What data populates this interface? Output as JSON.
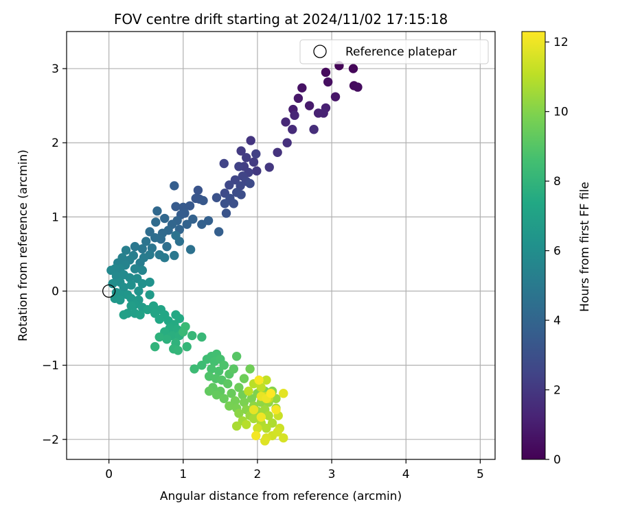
{
  "chart_data": {
    "type": "scatter",
    "title": "FOV centre drift starting at 2024/11/02 17:15:18",
    "xlabel": "Angular distance from reference (arcmin)",
    "ylabel": "Rotation from reference (arcmin)",
    "xlim": [
      -0.57,
      5.2
    ],
    "ylim": [
      -2.27,
      3.5
    ],
    "xticks": [
      0,
      1,
      2,
      3,
      4,
      5
    ],
    "yticks": [
      -2,
      -1,
      0,
      1,
      2,
      3
    ],
    "grid": true,
    "legend": {
      "position": "top-right",
      "entries": [
        "Reference platepar"
      ]
    },
    "reference_point": {
      "x": 0,
      "y": 0,
      "label": "Reference platepar"
    },
    "colorbar": {
      "label": "Hours from first FF file",
      "colormap": "viridis",
      "range": [
        0,
        12.3
      ],
      "ticks": [
        0,
        2,
        4,
        6,
        8,
        10,
        12
      ]
    },
    "points": [
      [
        3.1,
        3.04,
        0.1
      ],
      [
        3.29,
        3.0,
        0.2
      ],
      [
        2.92,
        2.95,
        0.3
      ],
      [
        3.3,
        2.77,
        0.35
      ],
      [
        3.35,
        2.75,
        0.4
      ],
      [
        2.95,
        2.82,
        0.5
      ],
      [
        2.6,
        2.74,
        0.6
      ],
      [
        3.05,
        2.62,
        0.7
      ],
      [
        2.55,
        2.6,
        0.8
      ],
      [
        2.7,
        2.5,
        0.9
      ],
      [
        2.48,
        2.45,
        1.0
      ],
      [
        2.92,
        2.47,
        1.1
      ],
      [
        2.82,
        2.4,
        1.15
      ],
      [
        2.89,
        2.4,
        1.2
      ],
      [
        2.5,
        2.37,
        1.3
      ],
      [
        2.38,
        2.28,
        1.4
      ],
      [
        2.47,
        2.18,
        1.5
      ],
      [
        2.76,
        2.18,
        1.6
      ],
      [
        2.4,
        2.0,
        1.7
      ],
      [
        2.27,
        1.87,
        1.8
      ],
      [
        1.91,
        2.03,
        1.9
      ],
      [
        2.16,
        1.67,
        2.0
      ],
      [
        1.99,
        1.62,
        2.05
      ],
      [
        1.78,
        1.89,
        2.1
      ],
      [
        1.95,
        1.74,
        2.15
      ],
      [
        1.85,
        1.8,
        2.2
      ],
      [
        1.82,
        1.68,
        2.25
      ],
      [
        1.88,
        1.6,
        2.3
      ],
      [
        1.98,
        1.85,
        2.35
      ],
      [
        1.75,
        1.68,
        2.4
      ],
      [
        1.55,
        1.72,
        2.45
      ],
      [
        1.8,
        1.55,
        2.5
      ],
      [
        1.7,
        1.5,
        2.55
      ],
      [
        1.85,
        1.48,
        2.6
      ],
      [
        1.62,
        1.43,
        2.65
      ],
      [
        1.77,
        1.42,
        2.7
      ],
      [
        1.9,
        1.45,
        2.75
      ],
      [
        1.56,
        1.32,
        2.8
      ],
      [
        1.72,
        1.33,
        2.85
      ],
      [
        1.78,
        1.3,
        2.9
      ],
      [
        1.63,
        1.25,
        2.95
      ],
      [
        1.68,
        1.18,
        3.0
      ],
      [
        1.56,
        1.18,
        3.05
      ],
      [
        1.45,
        1.26,
        3.1
      ],
      [
        1.58,
        1.05,
        3.15
      ],
      [
        1.2,
        1.36,
        3.2
      ],
      [
        1.22,
        1.24,
        3.25
      ],
      [
        1.17,
        1.25,
        3.3
      ],
      [
        1.27,
        1.22,
        3.35
      ],
      [
        1.09,
        1.15,
        3.4
      ],
      [
        1.0,
        1.13,
        3.45
      ],
      [
        0.9,
        1.14,
        3.5
      ],
      [
        1.02,
        1.05,
        3.55
      ],
      [
        0.97,
        1.03,
        3.6
      ],
      [
        0.88,
        1.42,
        3.65
      ],
      [
        1.48,
        0.8,
        3.7
      ],
      [
        1.34,
        0.95,
        3.75
      ],
      [
        1.25,
        0.9,
        3.8
      ],
      [
        1.13,
        0.97,
        3.85
      ],
      [
        1.05,
        0.9,
        3.9
      ],
      [
        0.92,
        0.95,
        3.95
      ],
      [
        0.95,
        0.83,
        4.0
      ],
      [
        0.85,
        0.9,
        4.05
      ],
      [
        0.75,
        0.98,
        4.1
      ],
      [
        0.65,
        1.08,
        4.15
      ],
      [
        0.8,
        0.82,
        4.2
      ],
      [
        0.72,
        0.78,
        4.25
      ],
      [
        0.63,
        0.93,
        4.3
      ],
      [
        0.7,
        0.7,
        4.35
      ],
      [
        0.55,
        0.8,
        4.4
      ],
      [
        0.62,
        0.72,
        4.45
      ],
      [
        0.78,
        0.6,
        4.5
      ],
      [
        0.95,
        0.67,
        4.55
      ],
      [
        1.1,
        0.56,
        4.6
      ],
      [
        0.9,
        0.75,
        4.65
      ],
      [
        0.5,
        0.67,
        4.7
      ],
      [
        0.58,
        0.58,
        4.75
      ],
      [
        0.45,
        0.57,
        4.8
      ],
      [
        0.35,
        0.6,
        4.85
      ],
      [
        0.88,
        0.48,
        4.9
      ],
      [
        0.68,
        0.49,
        4.95
      ],
      [
        0.75,
        0.45,
        5.0
      ],
      [
        0.55,
        0.49,
        5.05
      ],
      [
        0.47,
        0.45,
        5.1
      ],
      [
        0.42,
        0.38,
        5.15
      ],
      [
        0.33,
        0.48,
        5.2
      ],
      [
        0.23,
        0.55,
        5.25
      ],
      [
        0.28,
        0.42,
        5.3
      ],
      [
        0.18,
        0.45,
        5.35
      ],
      [
        0.12,
        0.38,
        5.4
      ],
      [
        0.22,
        0.35,
        5.45
      ],
      [
        0.35,
        0.3,
        5.5
      ],
      [
        0.45,
        0.28,
        5.55
      ],
      [
        0.15,
        0.3,
        5.6
      ],
      [
        0.08,
        0.3,
        5.65
      ],
      [
        0.03,
        0.28,
        5.7
      ],
      [
        0.1,
        0.2,
        5.75
      ],
      [
        0.2,
        0.22,
        5.8
      ],
      [
        0.28,
        0.18,
        5.85
      ],
      [
        0.38,
        0.17,
        5.9
      ],
      [
        0.15,
        0.12,
        5.95
      ],
      [
        0.05,
        0.1,
        6.0
      ],
      [
        0.2,
        0.05,
        6.05
      ],
      [
        0.3,
        0.08,
        6.1
      ],
      [
        0.45,
        0.1,
        6.15
      ],
      [
        0.55,
        0.12,
        6.2
      ],
      [
        0.4,
        0.0,
        6.25
      ],
      [
        0.1,
        -0.02,
        6.3
      ],
      [
        0.18,
        -0.05,
        6.35
      ],
      [
        0.25,
        -0.05,
        6.4
      ],
      [
        0.08,
        -0.1,
        6.45
      ],
      [
        0.15,
        -0.12,
        6.5
      ],
      [
        0.3,
        -0.1,
        6.55
      ],
      [
        0.4,
        -0.12,
        6.6
      ],
      [
        0.55,
        -0.05,
        6.65
      ],
      [
        0.35,
        -0.18,
        6.7
      ],
      [
        0.45,
        -0.22,
        6.75
      ],
      [
        0.3,
        -0.2,
        6.8
      ],
      [
        0.25,
        -0.3,
        6.85
      ],
      [
        0.35,
        -0.3,
        6.9
      ],
      [
        0.2,
        -0.32,
        6.95
      ],
      [
        0.42,
        -0.32,
        7.0
      ],
      [
        0.52,
        -0.25,
        7.05
      ],
      [
        0.6,
        -0.2,
        7.1
      ],
      [
        0.7,
        -0.25,
        7.15
      ],
      [
        0.62,
        -0.3,
        7.2
      ],
      [
        0.75,
        -0.32,
        7.25
      ],
      [
        0.68,
        -0.38,
        7.3
      ],
      [
        0.8,
        -0.4,
        7.35
      ],
      [
        0.9,
        -0.32,
        7.4
      ],
      [
        0.95,
        -0.37,
        7.45
      ],
      [
        0.88,
        -0.45,
        7.5
      ],
      [
        0.82,
        -0.5,
        7.55
      ],
      [
        0.92,
        -0.52,
        7.6
      ],
      [
        0.75,
        -0.55,
        7.65
      ],
      [
        0.85,
        -0.6,
        7.7
      ],
      [
        0.95,
        -0.6,
        7.75
      ],
      [
        0.78,
        -0.65,
        7.8
      ],
      [
        0.68,
        -0.62,
        7.85
      ],
      [
        0.9,
        -0.7,
        7.9
      ],
      [
        0.62,
        -0.75,
        7.95
      ],
      [
        0.87,
        -0.78,
        8.0
      ],
      [
        0.93,
        -0.8,
        8.05
      ],
      [
        1.05,
        -0.75,
        8.1
      ],
      [
        1.12,
        -0.6,
        8.15
      ],
      [
        1.25,
        -0.62,
        8.2
      ],
      [
        1.0,
        -0.55,
        8.25
      ],
      [
        1.03,
        -0.48,
        8.3
      ],
      [
        1.15,
        -1.05,
        8.35
      ],
      [
        1.25,
        -1.0,
        8.4
      ],
      [
        1.32,
        -0.92,
        8.45
      ],
      [
        1.38,
        -0.88,
        8.5
      ],
      [
        1.45,
        -0.85,
        8.55
      ],
      [
        1.42,
        -0.95,
        8.6
      ],
      [
        1.5,
        -0.92,
        8.65
      ],
      [
        1.38,
        -1.05,
        8.7
      ],
      [
        1.48,
        -1.08,
        8.75
      ],
      [
        1.55,
        -1.0,
        8.8
      ],
      [
        1.35,
        -1.15,
        8.85
      ],
      [
        1.44,
        -1.18,
        8.9
      ],
      [
        1.52,
        -1.2,
        8.95
      ],
      [
        1.62,
        -1.12,
        9.0
      ],
      [
        1.72,
        -0.88,
        9.05
      ],
      [
        1.68,
        -1.05,
        9.1
      ],
      [
        1.6,
        -1.25,
        9.15
      ],
      [
        1.4,
        -1.3,
        9.2
      ],
      [
        1.5,
        -1.35,
        9.25
      ],
      [
        1.35,
        -1.35,
        9.3
      ],
      [
        1.45,
        -1.4,
        9.35
      ],
      [
        1.55,
        -1.45,
        9.4
      ],
      [
        1.65,
        -1.38,
        9.45
      ],
      [
        1.75,
        -1.3,
        9.5
      ],
      [
        1.82,
        -1.18,
        9.55
      ],
      [
        1.9,
        -1.05,
        9.6
      ],
      [
        1.8,
        -1.4,
        9.65
      ],
      [
        1.7,
        -1.48,
        9.7
      ],
      [
        1.62,
        -1.55,
        9.75
      ],
      [
        1.72,
        -1.58,
        9.8
      ],
      [
        1.82,
        -1.5,
        9.85
      ],
      [
        1.92,
        -1.45,
        9.9
      ],
      [
        2.0,
        -1.38,
        9.95
      ],
      [
        2.1,
        -1.35,
        10.0
      ],
      [
        2.2,
        -1.35,
        10.05
      ],
      [
        1.85,
        -1.6,
        10.1
      ],
      [
        1.75,
        -1.65,
        10.15
      ],
      [
        1.95,
        -1.55,
        10.2
      ],
      [
        2.05,
        -1.5,
        10.25
      ],
      [
        2.15,
        -1.5,
        10.3
      ],
      [
        2.25,
        -1.45,
        10.35
      ],
      [
        1.9,
        -1.68,
        10.4
      ],
      [
        2.0,
        -1.62,
        10.45
      ],
      [
        2.1,
        -1.6,
        10.5
      ],
      [
        2.25,
        -1.58,
        10.55
      ],
      [
        1.8,
        -1.75,
        10.6
      ],
      [
        1.95,
        -1.72,
        10.65
      ],
      [
        1.72,
        -1.82,
        10.7
      ],
      [
        2.15,
        -1.68,
        10.75
      ],
      [
        2.2,
        -1.78,
        10.8
      ],
      [
        2.05,
        -1.78,
        10.85
      ],
      [
        2.12,
        -1.85,
        10.9
      ],
      [
        1.85,
        -1.8,
        10.95
      ],
      [
        1.95,
        -1.25,
        11.0
      ],
      [
        1.88,
        -1.35,
        11.05
      ],
      [
        2.05,
        -1.3,
        11.1
      ],
      [
        2.12,
        -1.2,
        11.15
      ],
      [
        2.1,
        -1.42,
        11.2
      ],
      [
        2.15,
        -1.45,
        11.25
      ],
      [
        2.28,
        -1.68,
        11.3
      ],
      [
        2.3,
        -1.85,
        11.35
      ],
      [
        2.0,
        -1.85,
        11.4
      ],
      [
        2.2,
        -1.95,
        11.45
      ],
      [
        2.27,
        -1.9,
        11.5
      ],
      [
        2.35,
        -1.98,
        11.55
      ],
      [
        2.12,
        -1.98,
        11.6
      ],
      [
        2.1,
        -2.02,
        11.7
      ],
      [
        2.35,
        -1.38,
        11.8
      ],
      [
        1.95,
        -1.6,
        11.85
      ],
      [
        2.05,
        -1.42,
        11.9
      ],
      [
        2.12,
        -1.45,
        12.0
      ],
      [
        2.05,
        -1.7,
        12.05
      ],
      [
        1.98,
        -1.95,
        12.1
      ],
      [
        2.25,
        -1.6,
        12.15
      ],
      [
        2.02,
        -1.2,
        12.2
      ],
      [
        2.18,
        -1.38,
        12.3
      ]
    ]
  }
}
